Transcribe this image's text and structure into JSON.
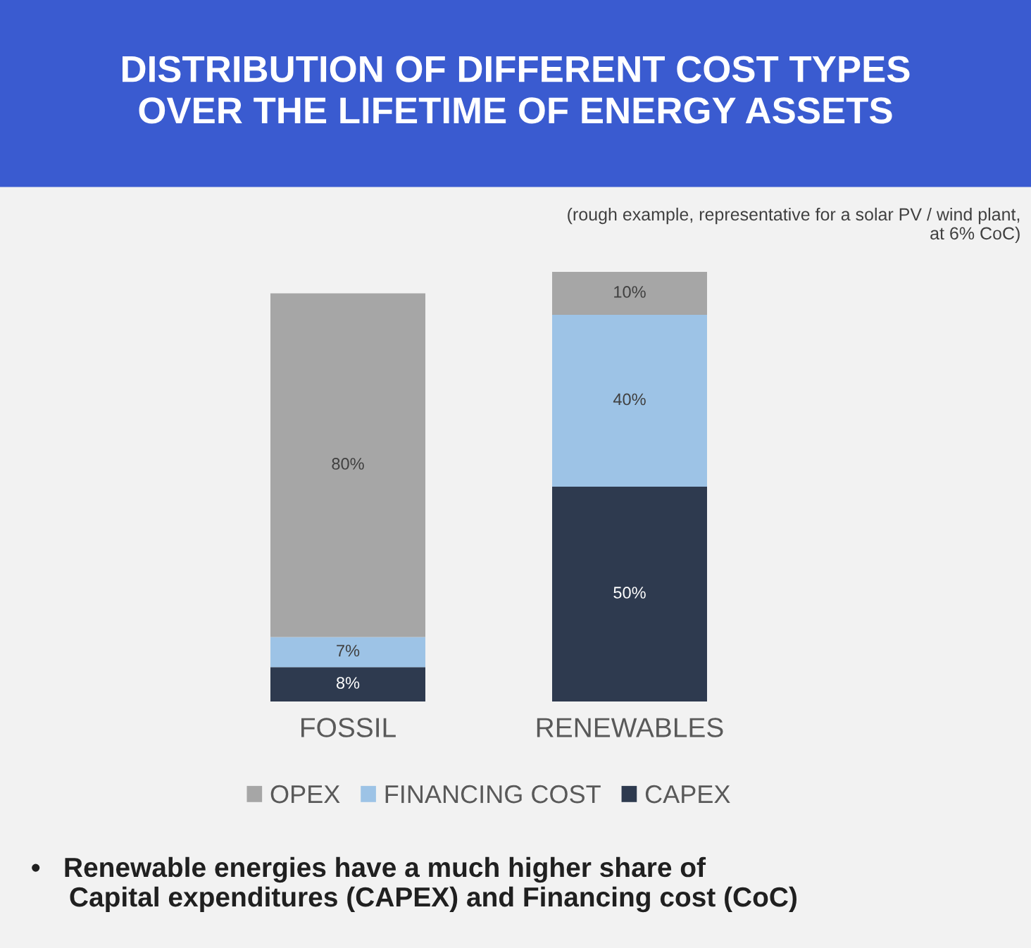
{
  "chart_data": {
    "type": "bar",
    "stacked": true,
    "title": "DISTRIBUTION OF DIFFERENT COST TYPES\nOVER THE LIFETIME OF ENERGY ASSETS",
    "subtitle": "(rough example, representative for a solar PV / wind plant,\nat 6% CoC)",
    "categories": [
      "FOSSIL",
      "RENEWABLES"
    ],
    "series": [
      {
        "name": "CAPEX",
        "color": "#2e3a4f",
        "values": [
          8,
          50
        ],
        "value_labels": [
          "8%",
          "50%"
        ]
      },
      {
        "name": "FINANCING COST",
        "color": "#9dc3e6",
        "values": [
          7,
          40
        ],
        "value_labels": [
          "7%",
          "40%"
        ]
      },
      {
        "name": "OPEX",
        "color": "#a6a6a6",
        "values": [
          80,
          10
        ],
        "value_labels": [
          "80%",
          "10%"
        ]
      }
    ],
    "legend": "bottom",
    "grid": false,
    "annotations": [
      "•   Renewable energies have a much higher share of\n     Capital expenditures (CAPEX) and Financing cost (CoC)"
    ]
  }
}
